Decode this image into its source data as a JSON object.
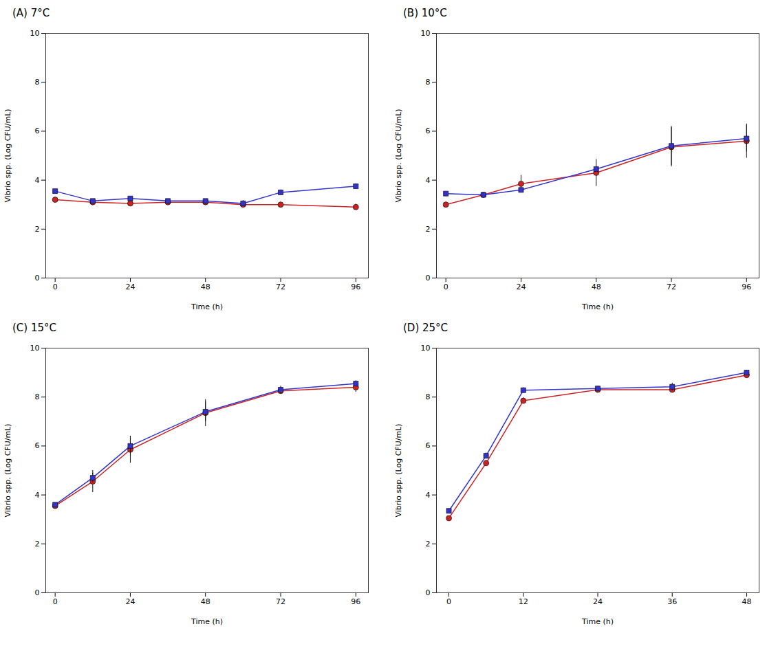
{
  "chart_data": [
    {
      "type": "line",
      "title": "(A)  7°C",
      "xlabel": "Time (h)",
      "ylabel": "Vibrio spp. (Log CFU/mL)",
      "x": [
        0,
        12,
        24,
        36,
        48,
        60,
        72,
        96
      ],
      "series": [
        {
          "color": "#3333cc",
          "marker": "square",
          "values": [
            3.55,
            3.15,
            3.25,
            3.15,
            3.15,
            3.05,
            3.5,
            3.75
          ],
          "errors": [
            0.05,
            0.08,
            0.08,
            0.05,
            0.05,
            0.12,
            0.1,
            0.1
          ]
        },
        {
          "color": "#cc2222",
          "marker": "circle",
          "values": [
            3.2,
            3.1,
            3.05,
            3.1,
            3.1,
            3.0,
            3.0,
            2.9
          ],
          "errors": [
            0.05,
            0.05,
            0.05,
            0.05,
            0.05,
            0.05,
            0.05,
            0.12
          ]
        }
      ],
      "xlim": [
        -3,
        100
      ],
      "xticks": [
        0,
        24,
        48,
        72,
        96
      ],
      "ylim": [
        0,
        10
      ],
      "yticks": [
        0,
        2,
        4,
        6,
        8,
        10
      ],
      "grid": false
    },
    {
      "type": "line",
      "title": "(B)  10°C",
      "xlabel": "Time (h)",
      "ylabel": "Vibrio spp. (Log CFU/mL)",
      "x": [
        0,
        12,
        24,
        48,
        72,
        96
      ],
      "series": [
        {
          "color": "#3333cc",
          "marker": "square",
          "values": [
            3.45,
            3.4,
            3.6,
            4.45,
            5.4,
            5.7
          ],
          "errors": [
            0.05,
            0.05,
            0.1,
            0.1,
            0.8,
            0.55
          ]
        },
        {
          "color": "#cc2222",
          "marker": "circle",
          "values": [
            3.0,
            3.4,
            3.85,
            4.3,
            5.35,
            5.6
          ],
          "errors": [
            0.05,
            0.05,
            0.35,
            0.55,
            0.8,
            0.7
          ]
        }
      ],
      "xlim": [
        -3,
        100
      ],
      "xticks": [
        0,
        24,
        48,
        72,
        96
      ],
      "ylim": [
        0,
        10
      ],
      "yticks": [
        0,
        2,
        4,
        6,
        8,
        10
      ],
      "grid": false
    },
    {
      "type": "line",
      "title": "(C)  15°C",
      "xlabel": "Time (h)",
      "ylabel": "Vibrio spp. (Log CFU/mL)",
      "x": [
        0,
        12,
        24,
        48,
        72,
        96
      ],
      "series": [
        {
          "color": "#3333cc",
          "marker": "square",
          "values": [
            3.6,
            4.7,
            6.0,
            7.4,
            8.3,
            8.55
          ],
          "errors": [
            0.05,
            0.2,
            0.4,
            0.4,
            0.15,
            0.12
          ]
        },
        {
          "color": "#cc2222",
          "marker": "circle",
          "values": [
            3.55,
            4.55,
            5.85,
            7.35,
            8.25,
            8.4
          ],
          "errors": [
            0.05,
            0.45,
            0.55,
            0.55,
            0.05,
            0.2
          ]
        }
      ],
      "xlim": [
        -3,
        100
      ],
      "xticks": [
        0,
        24,
        48,
        72,
        96
      ],
      "ylim": [
        0,
        10
      ],
      "yticks": [
        0,
        2,
        4,
        6,
        8,
        10
      ],
      "grid": false
    },
    {
      "type": "line",
      "title": "(D)  25°C",
      "xlabel": "Time (h)",
      "ylabel": "Vibrio spp. (Log CFU/mL)",
      "x": [
        0,
        6,
        12,
        24,
        36,
        48
      ],
      "series": [
        {
          "color": "#3333cc",
          "marker": "square",
          "values": [
            3.35,
            5.6,
            8.28,
            8.35,
            8.42,
            9.0
          ],
          "errors": [
            0.05,
            0.12,
            0.1,
            0.1,
            0.15,
            0.1
          ]
        },
        {
          "color": "#cc2222",
          "marker": "circle",
          "values": [
            3.05,
            5.3,
            7.85,
            8.3,
            8.3,
            8.9
          ],
          "errors": [
            0.05,
            0.12,
            0.12,
            0.1,
            0.1,
            0.1
          ]
        }
      ],
      "xlim": [
        -2,
        50
      ],
      "xticks": [
        0,
        12,
        24,
        36,
        48
      ],
      "ylim": [
        0,
        10
      ],
      "yticks": [
        0,
        2,
        4,
        6,
        8,
        10
      ],
      "grid": false
    }
  ]
}
